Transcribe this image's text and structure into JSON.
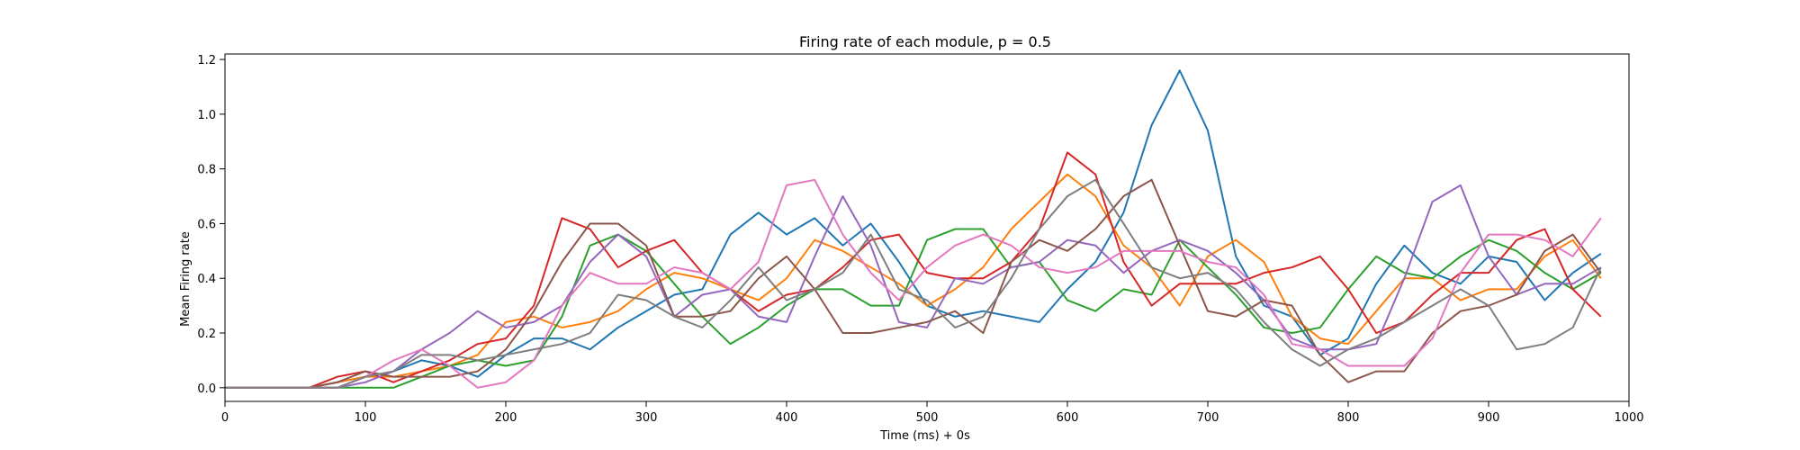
{
  "chart_data": {
    "type": "line",
    "title": "Firing rate of each module, p = 0.5",
    "xlabel": "Time (ms) + 0s",
    "ylabel": "Mean Firing rate",
    "xlim": [
      0,
      1000
    ],
    "ylim": [
      -0.05,
      1.22
    ],
    "xticks": [
      0,
      100,
      200,
      300,
      400,
      500,
      600,
      700,
      800,
      900,
      1000
    ],
    "yticks": [
      0.0,
      0.2,
      0.4,
      0.6,
      0.8,
      1.0,
      1.2
    ],
    "grid": false,
    "legend": "none",
    "x": [
      0,
      20,
      40,
      60,
      80,
      100,
      120,
      140,
      160,
      180,
      200,
      220,
      240,
      260,
      280,
      300,
      320,
      340,
      360,
      380,
      400,
      420,
      440,
      460,
      480,
      500,
      520,
      540,
      560,
      580,
      600,
      620,
      640,
      660,
      680,
      700,
      720,
      740,
      760,
      780,
      800,
      820,
      840,
      860,
      880,
      900,
      920,
      940,
      960,
      980
    ],
    "series": [
      {
        "color": "#1f77b4",
        "values": [
          0,
          0,
          0,
          0,
          0.02,
          0.04,
          0.06,
          0.1,
          0.08,
          0.04,
          0.12,
          0.18,
          0.18,
          0.14,
          0.22,
          0.28,
          0.34,
          0.36,
          0.56,
          0.64,
          0.56,
          0.62,
          0.52,
          0.6,
          0.46,
          0.3,
          0.26,
          0.28,
          0.26,
          0.24,
          0.36,
          0.46,
          0.64,
          0.96,
          1.16,
          0.94,
          0.48,
          0.3,
          0.26,
          0.12,
          0.18,
          0.38,
          0.52,
          0.42,
          0.38,
          0.48,
          0.46,
          0.32,
          0.42,
          0.49
        ]
      },
      {
        "color": "#ff7f0e",
        "values": [
          0,
          0,
          0,
          0,
          0.02,
          0.04,
          0.04,
          0.06,
          0.08,
          0.12,
          0.24,
          0.26,
          0.22,
          0.24,
          0.28,
          0.36,
          0.42,
          0.4,
          0.36,
          0.32,
          0.4,
          0.54,
          0.5,
          0.44,
          0.38,
          0.3,
          0.36,
          0.44,
          0.58,
          0.68,
          0.78,
          0.7,
          0.52,
          0.44,
          0.3,
          0.48,
          0.54,
          0.46,
          0.26,
          0.18,
          0.16,
          0.28,
          0.4,
          0.4,
          0.32,
          0.36,
          0.36,
          0.48,
          0.54,
          0.4
        ]
      },
      {
        "color": "#2ca02c",
        "values": [
          0,
          0,
          0,
          0,
          0,
          0,
          0,
          0.04,
          0.08,
          0.1,
          0.08,
          0.1,
          0.26,
          0.52,
          0.56,
          0.5,
          0.38,
          0.26,
          0.16,
          0.22,
          0.3,
          0.36,
          0.36,
          0.3,
          0.3,
          0.54,
          0.58,
          0.58,
          0.44,
          0.46,
          0.32,
          0.28,
          0.36,
          0.34,
          0.54,
          0.44,
          0.34,
          0.22,
          0.2,
          0.22,
          0.36,
          0.48,
          0.42,
          0.4,
          0.48,
          0.54,
          0.5,
          0.42,
          0.36,
          0.42
        ]
      },
      {
        "color": "#d62728",
        "values": [
          0,
          0,
          0,
          0,
          0.04,
          0.06,
          0.02,
          0.06,
          0.1,
          0.16,
          0.18,
          0.3,
          0.62,
          0.58,
          0.44,
          0.5,
          0.54,
          0.42,
          0.36,
          0.28,
          0.34,
          0.36,
          0.44,
          0.54,
          0.56,
          0.42,
          0.4,
          0.4,
          0.46,
          0.58,
          0.86,
          0.78,
          0.46,
          0.3,
          0.38,
          0.38,
          0.38,
          0.42,
          0.44,
          0.48,
          0.36,
          0.2,
          0.24,
          0.34,
          0.42,
          0.42,
          0.54,
          0.58,
          0.36,
          0.26
        ]
      },
      {
        "color": "#9467bd",
        "values": [
          0,
          0,
          0,
          0,
          0,
          0.02,
          0.06,
          0.14,
          0.2,
          0.28,
          0.22,
          0.24,
          0.3,
          0.46,
          0.56,
          0.48,
          0.26,
          0.34,
          0.36,
          0.26,
          0.24,
          0.48,
          0.7,
          0.52,
          0.24,
          0.22,
          0.4,
          0.38,
          0.44,
          0.46,
          0.54,
          0.52,
          0.42,
          0.5,
          0.54,
          0.5,
          0.42,
          0.32,
          0.18,
          0.14,
          0.14,
          0.16,
          0.4,
          0.68,
          0.74,
          0.48,
          0.34,
          0.38,
          0.38,
          0.44
        ]
      },
      {
        "color": "#8c564b",
        "values": [
          0,
          0,
          0,
          0,
          0.02,
          0.06,
          0.04,
          0.04,
          0.04,
          0.06,
          0.14,
          0.28,
          0.46,
          0.6,
          0.6,
          0.52,
          0.26,
          0.26,
          0.28,
          0.4,
          0.48,
          0.36,
          0.2,
          0.2,
          0.22,
          0.24,
          0.28,
          0.2,
          0.46,
          0.54,
          0.5,
          0.58,
          0.7,
          0.76,
          0.52,
          0.28,
          0.26,
          0.32,
          0.3,
          0.12,
          0.02,
          0.06,
          0.06,
          0.2,
          0.28,
          0.3,
          0.34,
          0.5,
          0.56,
          0.42
        ]
      },
      {
        "color": "#e377c2",
        "values": [
          0,
          0,
          0,
          0,
          0,
          0.04,
          0.1,
          0.14,
          0.08,
          0,
          0.02,
          0.1,
          0.3,
          0.42,
          0.38,
          0.38,
          0.44,
          0.42,
          0.36,
          0.46,
          0.74,
          0.76,
          0.56,
          0.42,
          0.32,
          0.44,
          0.52,
          0.56,
          0.52,
          0.44,
          0.42,
          0.44,
          0.5,
          0.5,
          0.5,
          0.46,
          0.44,
          0.34,
          0.16,
          0.14,
          0.08,
          0.08,
          0.08,
          0.18,
          0.42,
          0.56,
          0.56,
          0.54,
          0.48,
          0.62
        ]
      },
      {
        "color": "#7f7f7f",
        "values": [
          0,
          0,
          0,
          0,
          0,
          0.04,
          0.06,
          0.12,
          0.12,
          0.1,
          0.12,
          0.14,
          0.16,
          0.2,
          0.34,
          0.32,
          0.26,
          0.22,
          0.32,
          0.44,
          0.32,
          0.36,
          0.42,
          0.56,
          0.36,
          0.32,
          0.22,
          0.26,
          0.4,
          0.58,
          0.7,
          0.76,
          0.6,
          0.44,
          0.4,
          0.42,
          0.36,
          0.24,
          0.14,
          0.08,
          0.14,
          0.18,
          0.24,
          0.3,
          0.36,
          0.3,
          0.14,
          0.16,
          0.22,
          0.44
        ]
      }
    ]
  }
}
